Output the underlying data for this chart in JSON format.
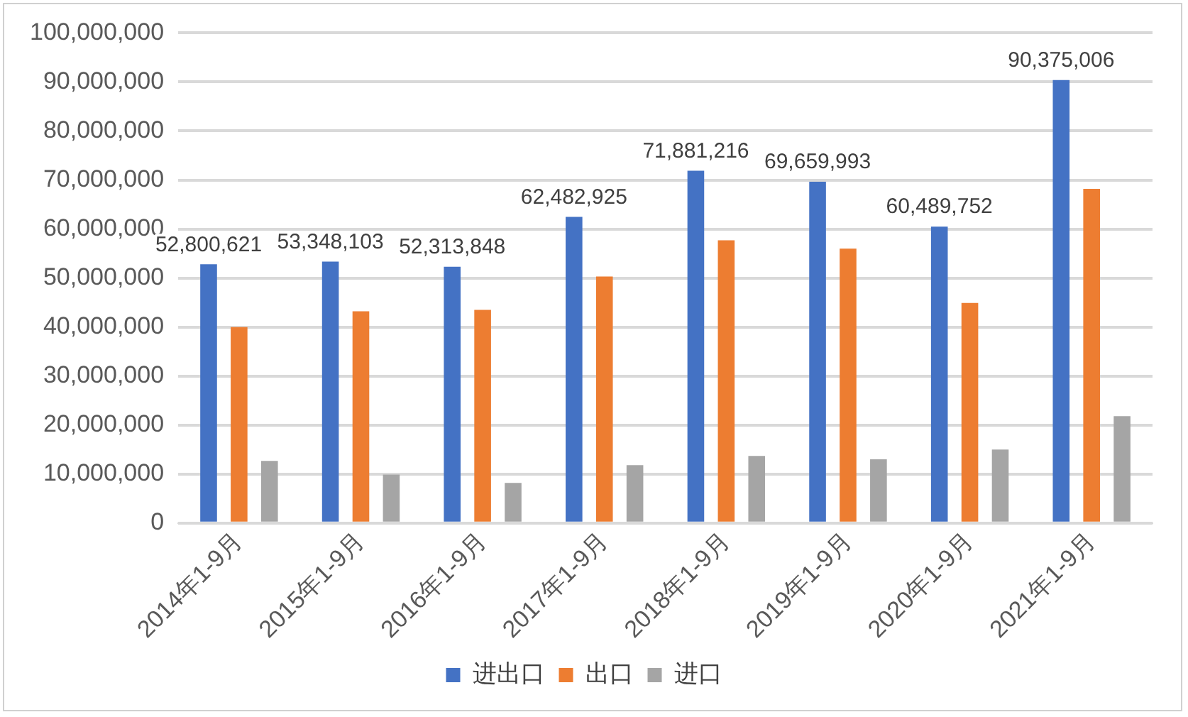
{
  "chart_data": {
    "type": "bar",
    "categories": [
      "2014年1-9月",
      "2015年1-9月",
      "2016年1-9月",
      "2017年1-9月",
      "2018年1-9月",
      "2019年1-9月",
      "2020年1-9月",
      "2021年1-9月"
    ],
    "series": [
      {
        "name": "进出口",
        "color": "#4472c4",
        "values": [
          52800621,
          53348103,
          52313848,
          62482925,
          71881216,
          69659993,
          60489752,
          90375006
        ],
        "value_labels": [
          "52,800,621",
          "53,348,103",
          "52,313,848",
          "62,482,925",
          "71,881,216",
          "69,659,993",
          "60,489,752",
          "90,375,006"
        ]
      },
      {
        "name": "出口",
        "color": "#ed7d31",
        "values": [
          40000000,
          43200000,
          43500000,
          50300000,
          57700000,
          56000000,
          44900000,
          68200000
        ]
      },
      {
        "name": "进口",
        "color": "#a5a5a5",
        "values": [
          12700000,
          9900000,
          8200000,
          11800000,
          13700000,
          13000000,
          15000000,
          21800000
        ]
      }
    ],
    "ylim": [
      0,
      100000000
    ],
    "yticks": [
      {
        "value": 0,
        "label": "0"
      },
      {
        "value": 10000000,
        "label": "10,000,000"
      },
      {
        "value": 20000000,
        "label": "20,000,000"
      },
      {
        "value": 30000000,
        "label": "30,000,000"
      },
      {
        "value": 40000000,
        "label": "40,000,000"
      },
      {
        "value": 50000000,
        "label": "50,000,000"
      },
      {
        "value": 60000000,
        "label": "60,000,000"
      },
      {
        "value": 70000000,
        "label": "70,000,000"
      },
      {
        "value": 80000000,
        "label": "80,000,000"
      },
      {
        "value": 90000000,
        "label": "90,000,000"
      },
      {
        "value": 100000000,
        "label": "100,000,000"
      }
    ],
    "grid": "y",
    "legend": "bottom"
  }
}
